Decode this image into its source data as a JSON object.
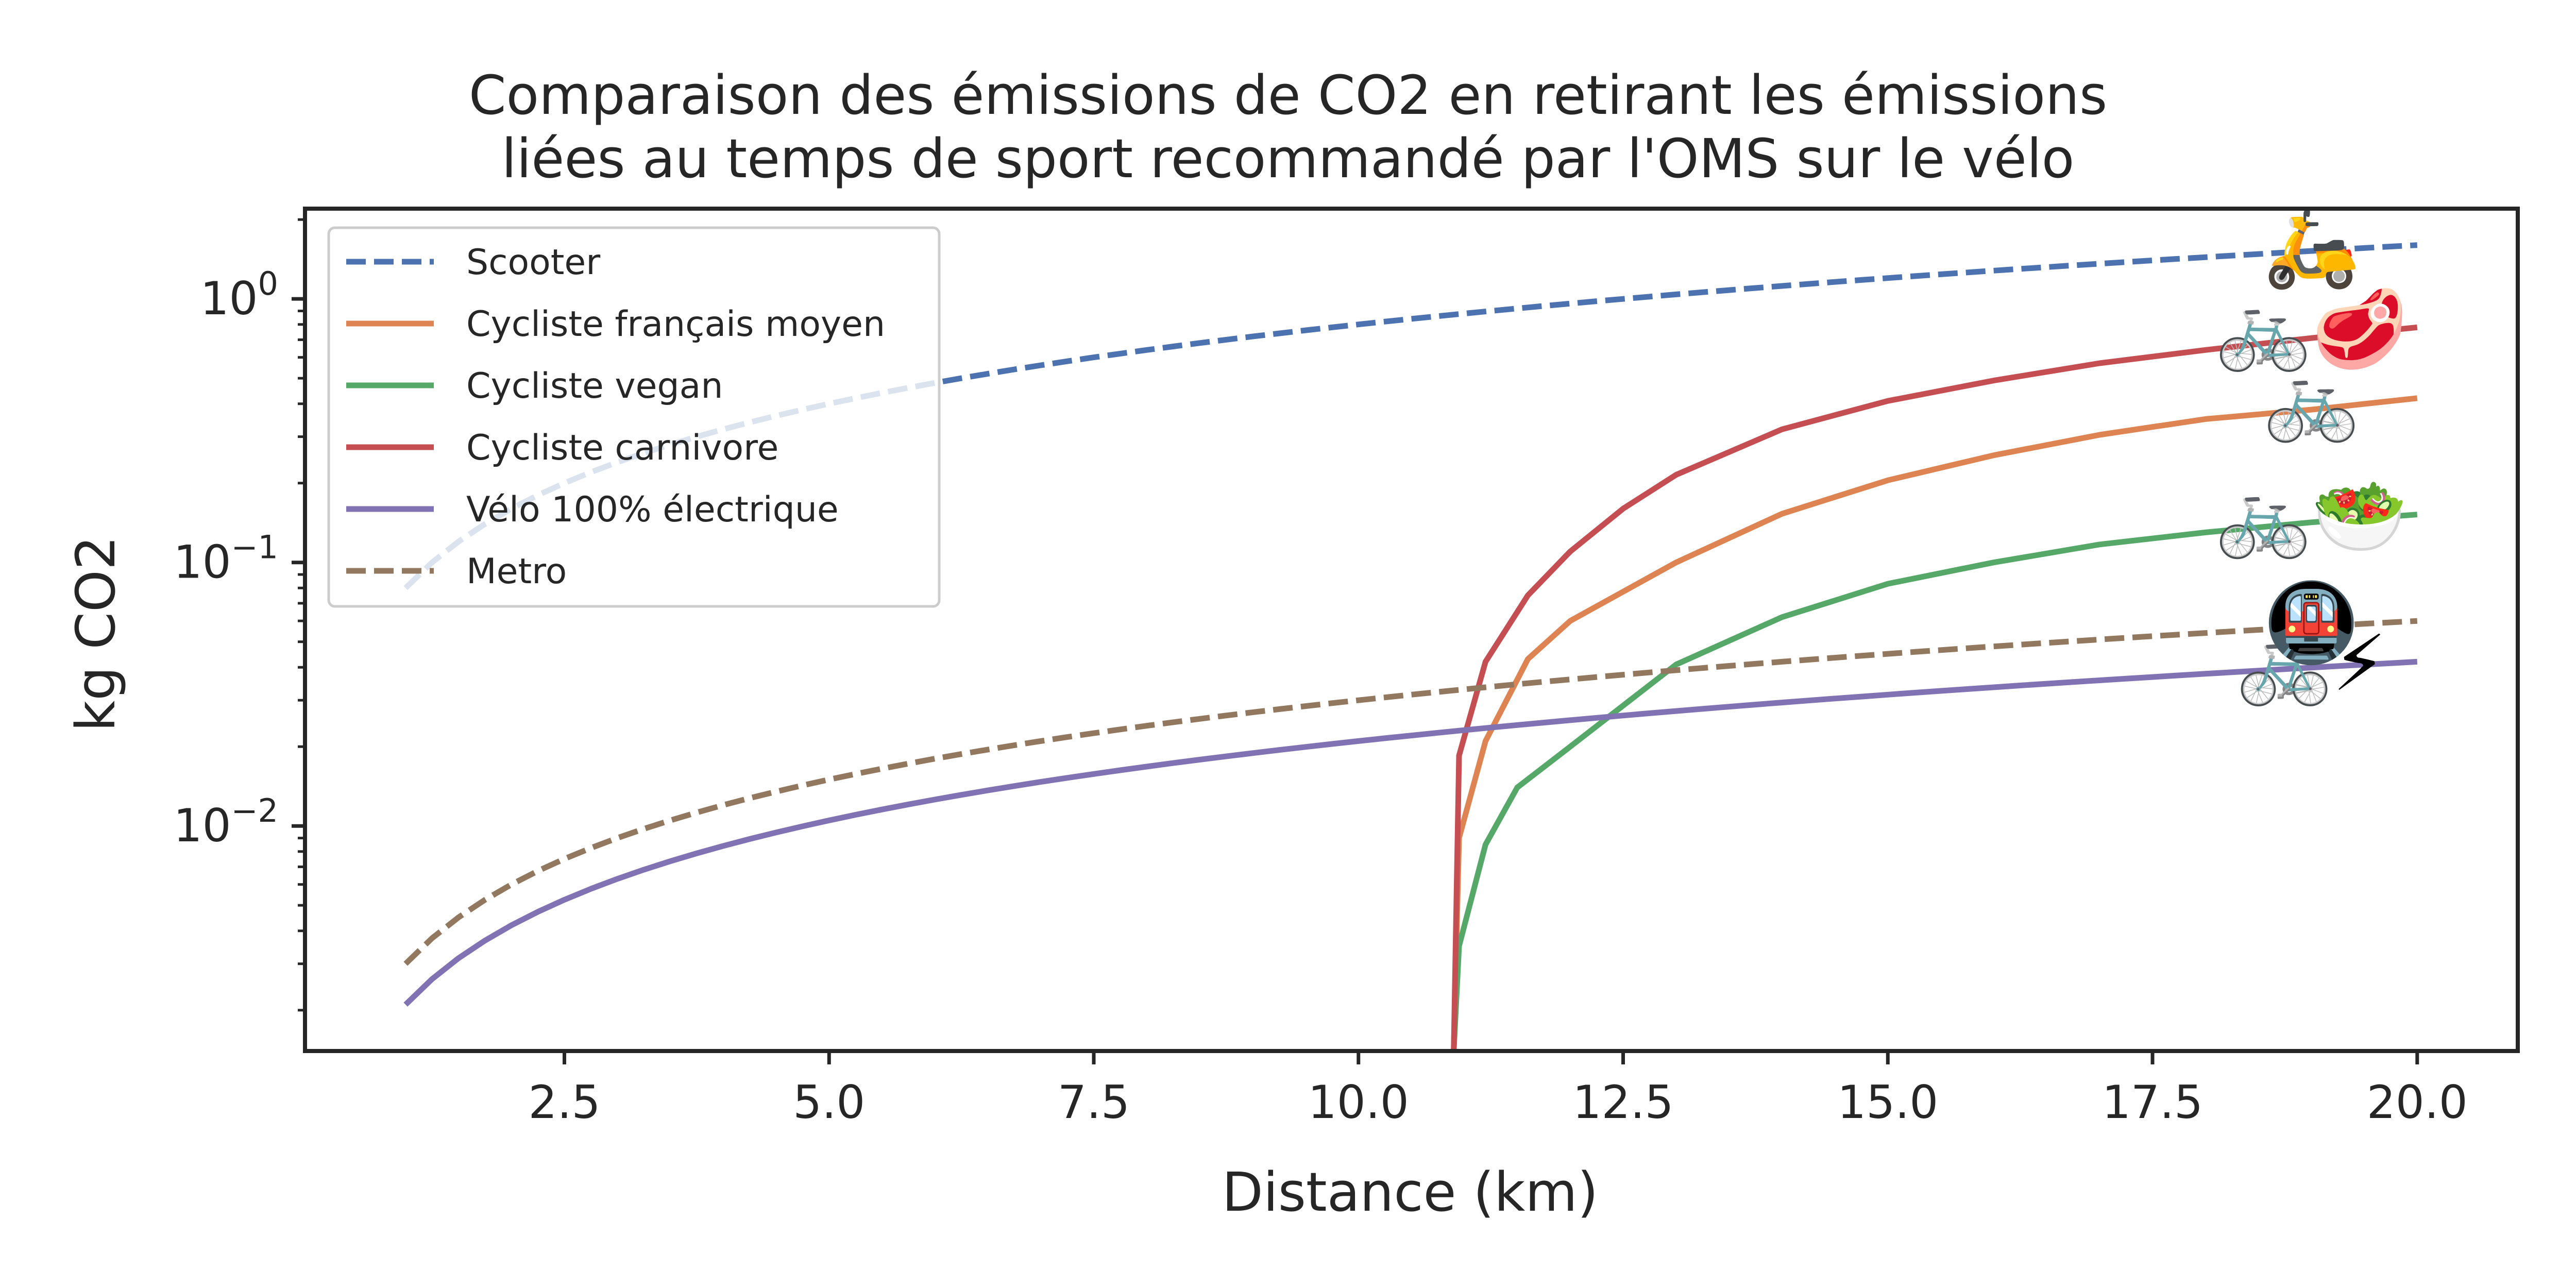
{
  "chart_data": {
    "type": "line",
    "title": "Comparaison des émissions de CO2 en retirant les émissions liées au temps de sport recommandé par l'OMS sur le vélo",
    "title_lines": [
      "Comparaison des émissions de CO2 en retirant les émissions",
      "liées au temps de sport recommandé par l'OMS sur le vélo"
    ],
    "xlabel": "Distance (km)",
    "ylabel": "kg CO2",
    "xlim": [
      0.05,
      20.95
    ],
    "ylim": [
      0.0014,
      2.2
    ],
    "yscale": "log",
    "grid": false,
    "legend_position": "upper left",
    "x_ticks": [
      2.5,
      5.0,
      7.5,
      10.0,
      12.5,
      15.0,
      17.5,
      20.0
    ],
    "x_tick_labels": [
      "2.5",
      "5.0",
      "7.5",
      "10.0",
      "12.5",
      "15.0",
      "17.5",
      "20.0"
    ],
    "y_ticks": [
      {
        "value": 1,
        "base": "10",
        "exp": "0"
      },
      {
        "value": 0.1,
        "base": "10",
        "exp": "−1"
      },
      {
        "value": 0.01,
        "base": "10",
        "exp": "−2"
      }
    ],
    "series": [
      {
        "name": "Scooter",
        "color": "#4c72b0",
        "style": "dashed",
        "rate_per_km": 0.08,
        "x_start": 1,
        "x_end": 20,
        "emoji": "🛵"
      },
      {
        "name": "Cycliste français moyen",
        "color": "#dd8452",
        "style": "solid",
        "x_zero": 10.9,
        "points": [
          [
            10.9,
            0.001
          ],
          [
            10.95,
            0.009
          ],
          [
            11.2,
            0.021
          ],
          [
            11.6,
            0.043
          ],
          [
            12,
            0.06
          ],
          [
            13,
            0.1
          ],
          [
            14,
            0.153
          ],
          [
            15,
            0.205
          ],
          [
            16,
            0.255
          ],
          [
            17,
            0.305
          ],
          [
            18,
            0.35
          ],
          [
            19,
            0.38
          ],
          [
            20,
            0.42
          ]
        ],
        "emoji": "🚲"
      },
      {
        "name": "Cycliste vegan",
        "color": "#55a868",
        "style": "solid",
        "points": [
          [
            10.9,
            0.001
          ],
          [
            10.95,
            0.0035
          ],
          [
            11.2,
            0.0085
          ],
          [
            11.5,
            0.014
          ],
          [
            12,
            0.02
          ],
          [
            13,
            0.041
          ],
          [
            14,
            0.062
          ],
          [
            15,
            0.083
          ],
          [
            16,
            0.1
          ],
          [
            17,
            0.117
          ],
          [
            18,
            0.13
          ],
          [
            19,
            0.142
          ],
          [
            20,
            0.152
          ]
        ],
        "emoji": "🚲🥗"
      },
      {
        "name": "Cycliste carnivore",
        "color": "#c44e52",
        "style": "solid",
        "points": [
          [
            10.9,
            0.001
          ],
          [
            10.95,
            0.0185
          ],
          [
            11.2,
            0.042
          ],
          [
            11.6,
            0.075
          ],
          [
            12,
            0.11
          ],
          [
            12.5,
            0.16
          ],
          [
            13,
            0.215
          ],
          [
            14,
            0.32
          ],
          [
            15,
            0.41
          ],
          [
            16,
            0.49
          ],
          [
            17,
            0.57
          ],
          [
            18,
            0.64
          ],
          [
            19,
            0.71
          ],
          [
            20,
            0.78
          ]
        ],
        "emoji": "🚲🥩"
      },
      {
        "name": "Vélo 100% électrique",
        "color": "#8172b3",
        "style": "solid",
        "rate_per_km": 0.0021,
        "x_start": 1,
        "x_end": 20,
        "emoji": "🚲⚡"
      },
      {
        "name": "Metro",
        "color": "#937860",
        "style": "dashed",
        "rate_per_km": 0.003,
        "x_start": 1,
        "x_end": 20,
        "emoji": "🚇"
      }
    ]
  }
}
